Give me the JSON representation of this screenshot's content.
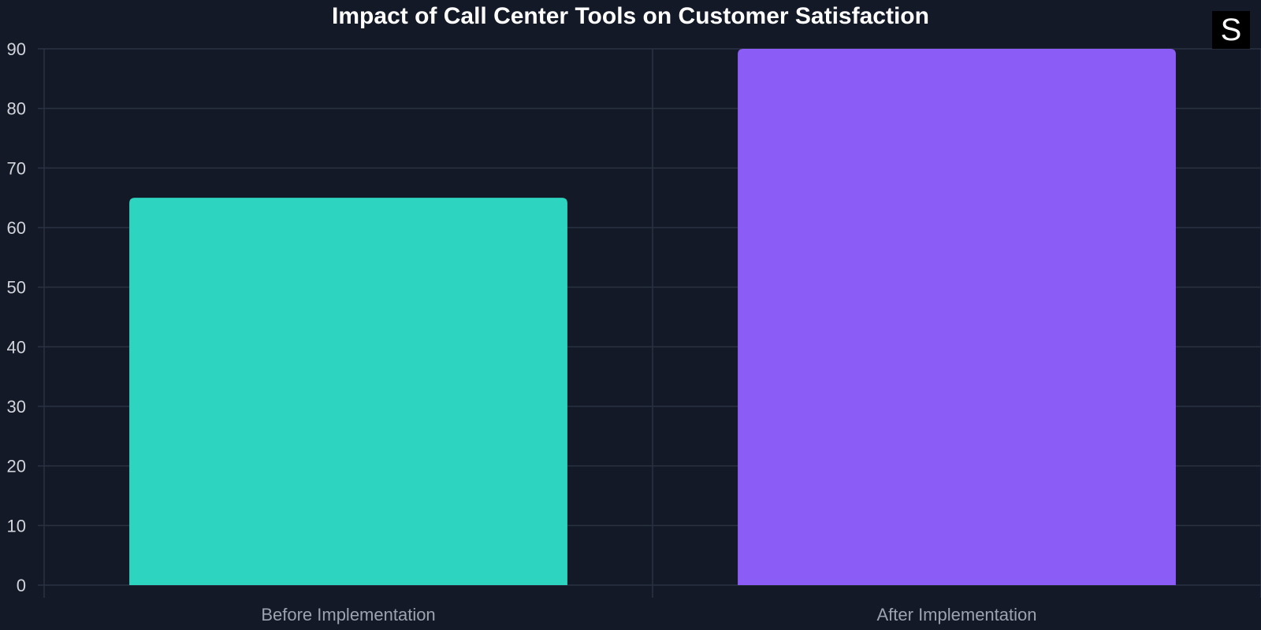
{
  "logo": {
    "letter": "S"
  },
  "chart_data": {
    "type": "bar",
    "title": "Impact of Call Center Tools on Customer Satisfaction",
    "xlabel": "",
    "ylabel": "",
    "categories": [
      "Before Implementation",
      "After Implementation"
    ],
    "values": [
      65,
      90
    ],
    "colors": [
      "#2dd4bf",
      "#8b5cf6"
    ],
    "ylim": [
      0,
      90
    ],
    "yticks": [
      0,
      10,
      20,
      30,
      40,
      50,
      60,
      70,
      80,
      90
    ],
    "grid": true,
    "legend": "none",
    "theme": {
      "background": "#131927",
      "grid_color": "#2a3242",
      "title_color": "#ffffff",
      "ytick_color": "#d1d5db",
      "xtick_color": "#9ca3af"
    }
  }
}
